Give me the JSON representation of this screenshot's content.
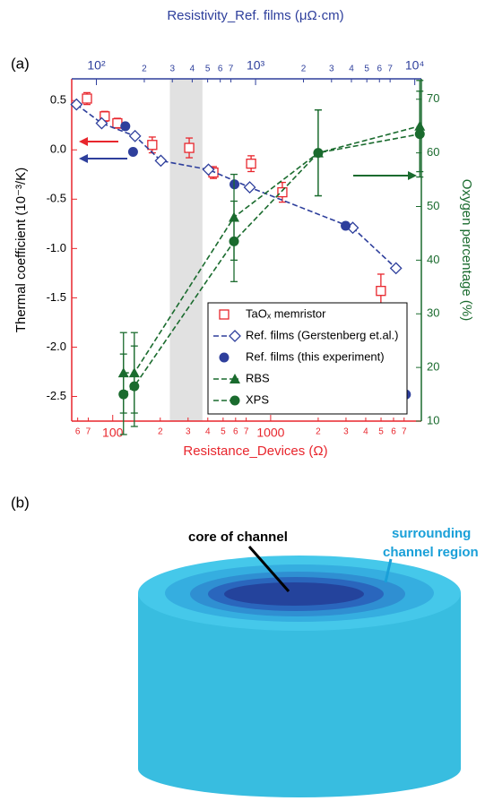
{
  "chart_data": {
    "type": "scatter",
    "panel_label": "(a)",
    "x_label": "Resistance_Devices (Ω)",
    "x2_label": "Resistivity_Ref. films (μΩ·cm)",
    "y_label": "Thermal coefficient (10⁻³/K)",
    "y2_label": "Oxygen percentage (%)",
    "xscale": "log",
    "x2scale": "log",
    "xlim": [
      55,
      9000
    ],
    "x2lim": [
      70,
      11000
    ],
    "ylim": [
      -2.75,
      0.72
    ],
    "y2lim": [
      10,
      73.8
    ],
    "highlight_xlim": [
      230,
      370
    ],
    "xticks": [
      {
        "value": 60,
        "label": "6"
      },
      {
        "value": 70,
        "label": "7"
      },
      {
        "value": 100,
        "label": "100"
      },
      {
        "value": 200,
        "label": "2"
      },
      {
        "value": 300,
        "label": "3"
      },
      {
        "value": 400,
        "label": "4"
      },
      {
        "value": 500,
        "label": "5"
      },
      {
        "value": 600,
        "label": "6"
      },
      {
        "value": 700,
        "label": "7"
      },
      {
        "value": 1000,
        "label": "1000"
      },
      {
        "value": 2000,
        "label": "2"
      },
      {
        "value": 3000,
        "label": "3"
      },
      {
        "value": 4000,
        "label": "4"
      },
      {
        "value": 5000,
        "label": "5"
      },
      {
        "value": 6000,
        "label": "6"
      },
      {
        "value": 7000,
        "label": "7"
      }
    ],
    "x2ticks": [
      {
        "value": 100,
        "label": "10²"
      },
      {
        "value": 200,
        "label": "2"
      },
      {
        "value": 300,
        "label": "3"
      },
      {
        "value": 400,
        "label": "4"
      },
      {
        "value": 500,
        "label": "5"
      },
      {
        "value": 600,
        "label": "6"
      },
      {
        "value": 700,
        "label": "7"
      },
      {
        "value": 1000,
        "label": "10³"
      },
      {
        "value": 2000,
        "label": "2"
      },
      {
        "value": 3000,
        "label": "3"
      },
      {
        "value": 4000,
        "label": "4"
      },
      {
        "value": 5000,
        "label": "5"
      },
      {
        "value": 6000,
        "label": "6"
      },
      {
        "value": 7000,
        "label": "7"
      },
      {
        "value": 10000,
        "label": "10⁴"
      }
    ],
    "yticks": [
      0.5,
      {
        "value": 0,
        "label": "0.0"
      },
      -0.5,
      {
        "value": -1,
        "label": "-1.0"
      },
      -1.5,
      {
        "value": -2,
        "label": "-2.0"
      },
      -2.5
    ],
    "y2ticks": [
      10,
      20,
      30,
      40,
      50,
      60,
      70
    ],
    "legend_position": "lower right",
    "series": [
      {
        "name": "TaOₓ memristor",
        "color": "#e8262d",
        "marker": "open-square",
        "line": false,
        "axis": "x",
        "x": [
          68.7,
          89,
          107,
          178,
          305,
          434,
          752,
          1186,
          4990
        ],
        "values": [
          0.52,
          0.34,
          0.27,
          0.05,
          0.02,
          -0.23,
          -0.14,
          -0.43,
          -1.43
        ],
        "errors": [
          0.06,
          0.05,
          0.05,
          0.08,
          0.1,
          0.06,
          0.08,
          0.1,
          0.17
        ]
      },
      {
        "name": "Ref. films (Gerstenberg et.al.)",
        "color": "#2e3f9c",
        "marker": "open-diamond",
        "line": true,
        "axis": "x2",
        "x": [
          75,
          108,
          175,
          254,
          506,
          919,
          4080,
          7620
        ],
        "values": [
          0.46,
          0.27,
          0.14,
          -0.11,
          -0.2,
          -0.38,
          -0.79,
          -1.2
        ]
      },
      {
        "name": "Ref. films (this experiment)",
        "color": "#2e3f9c",
        "marker": "circle",
        "line": false,
        "axis": "x2",
        "x": [
          152,
          170,
          737,
          3680,
          8800
        ],
        "values": [
          0.24,
          -0.02,
          -0.35,
          -0.77,
          -2.48
        ]
      },
      {
        "name": "RBS",
        "color": "#1a6b2e",
        "marker": "triangle",
        "line": true,
        "axis": "y2",
        "x": [
          117,
          137,
          586,
          2000,
          8800
        ],
        "values": [
          19,
          19,
          48,
          60,
          65
        ],
        "errors": [
          7.5,
          7.5,
          8,
          8,
          8.5
        ]
      },
      {
        "name": "XPS",
        "color": "#1a6b2e",
        "marker": "circle",
        "line": true,
        "axis": "y2",
        "x": [
          117,
          137,
          586,
          2000,
          8800
        ],
        "values": [
          15,
          16.5,
          43.5,
          60,
          63.5
        ],
        "errors": [
          7.5,
          7.5,
          7.5,
          8,
          8
        ]
      }
    ]
  },
  "panel_b": {
    "label": "(b)",
    "core_label": "core of channel",
    "surrounding_label": [
      "surrounding",
      "channel region"
    ]
  }
}
